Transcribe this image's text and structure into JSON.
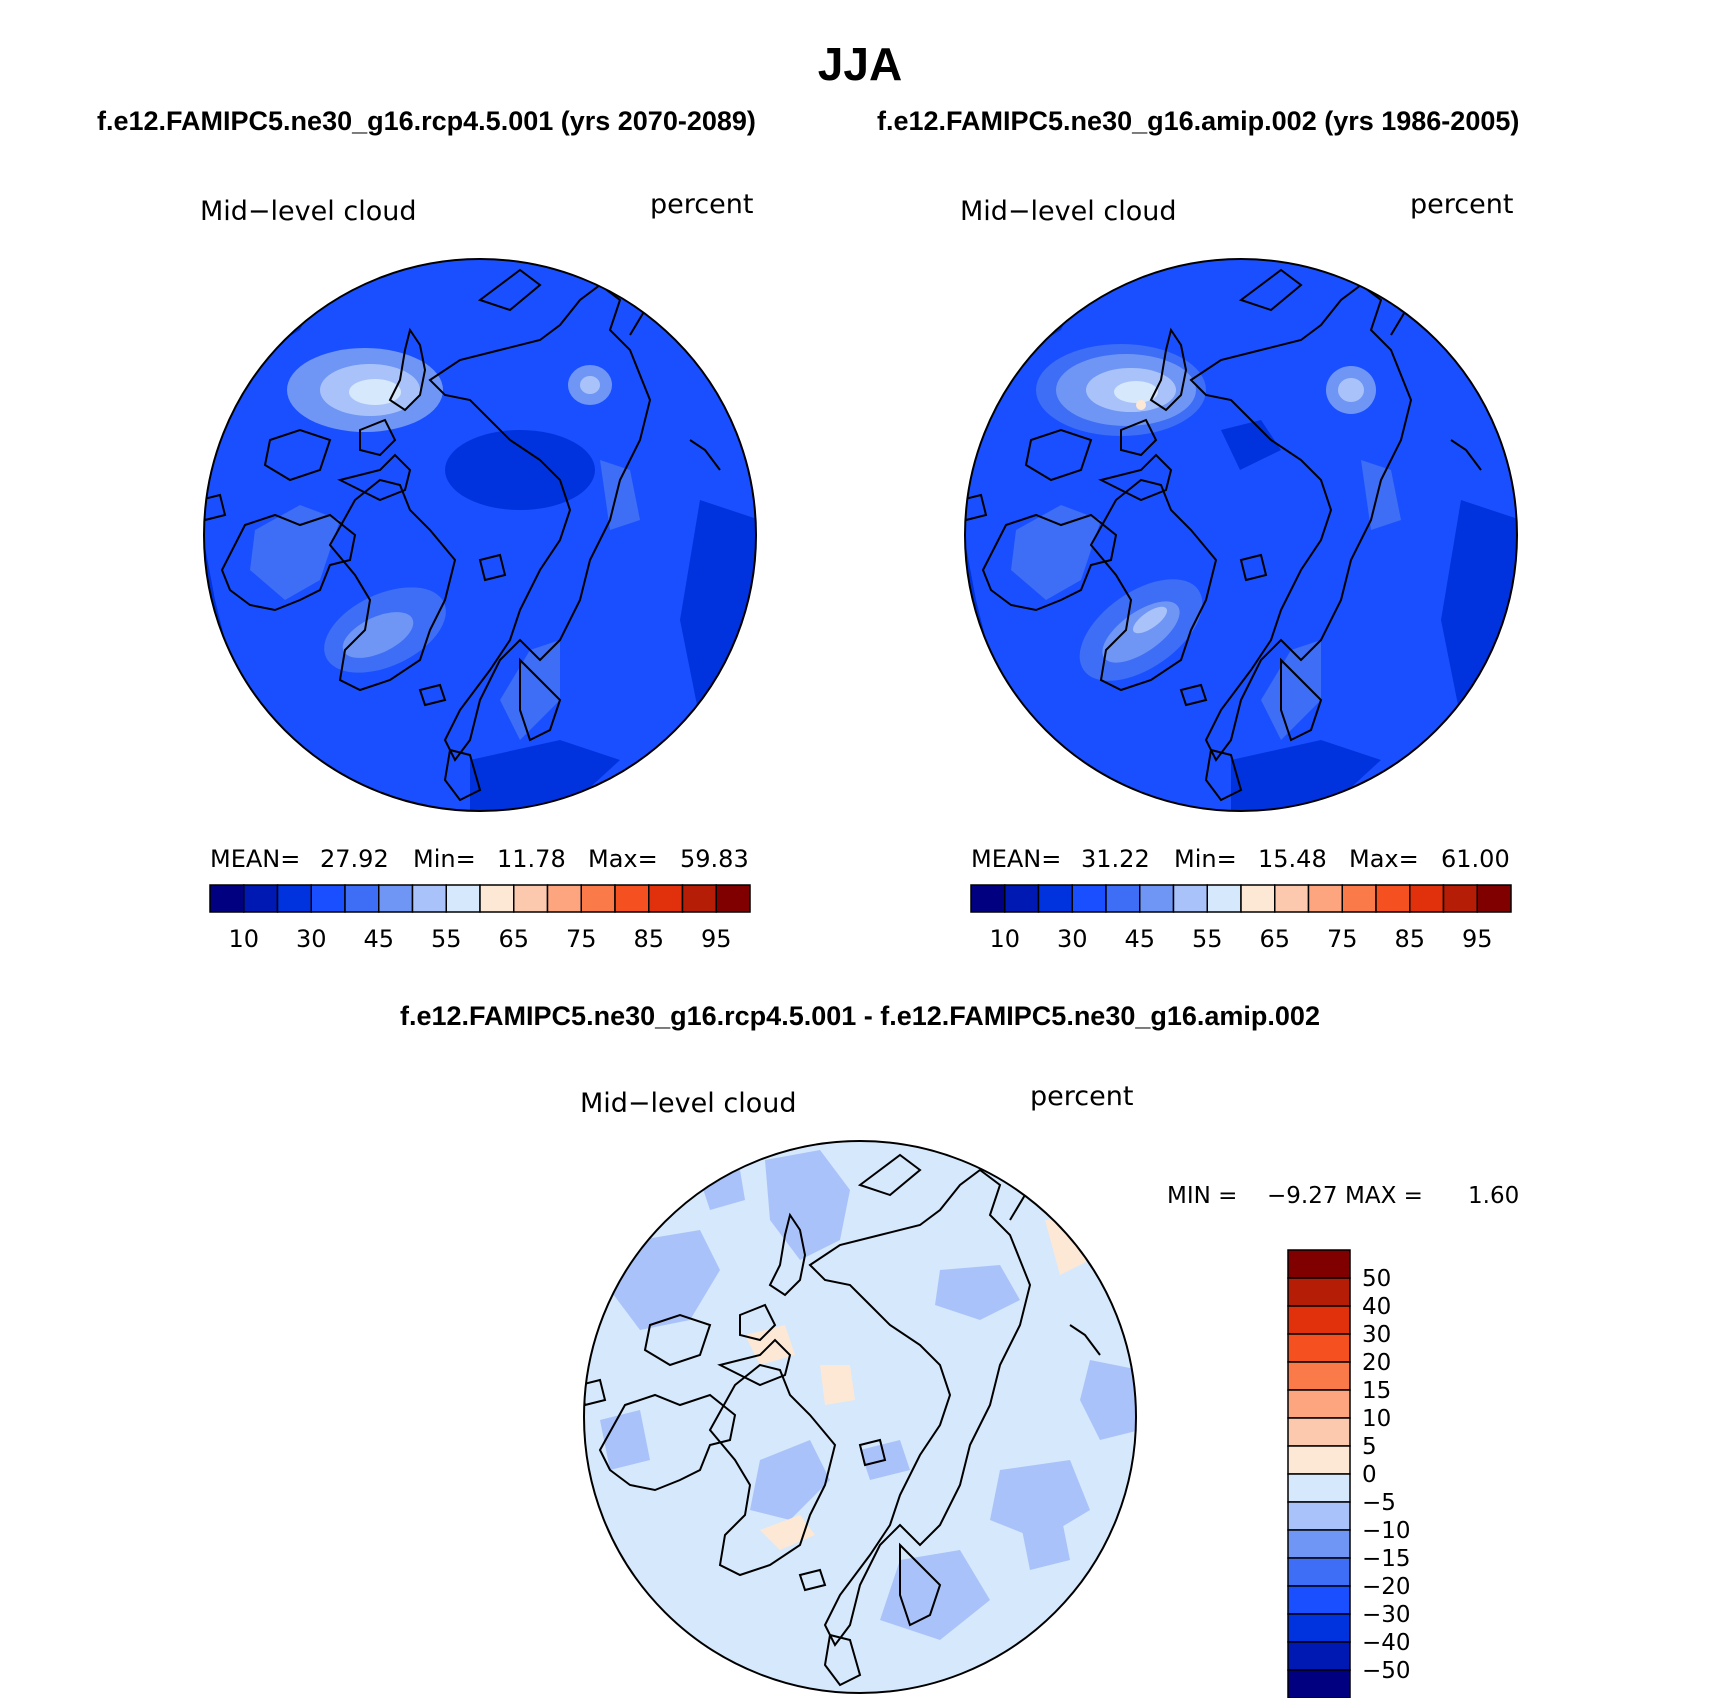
{
  "title": "JJA",
  "panels": [
    {
      "heading": "f.e12.FAMIPC5.ne30_g16.rcp4.5.001 (yrs 2070-2089)",
      "variable_label": "Mid−level cloud",
      "units_label": "percent",
      "stats": {
        "mean_label": "MEAN=",
        "mean_value": "27.92",
        "min_label": "Min=",
        "min_value": "11.78",
        "max_label": "Max=",
        "max_value": "59.83"
      }
    },
    {
      "heading": "f.e12.FAMIPC5.ne30_g16.amip.002 (yrs 1986-2005)",
      "variable_label": "Mid−level cloud",
      "units_label": "percent",
      "stats": {
        "mean_label": "MEAN=",
        "mean_value": "31.22",
        "min_label": "Min=",
        "min_value": "15.48",
        "max_label": "Max=",
        "max_value": "61.00"
      }
    }
  ],
  "colorbar_top": {
    "colors": [
      "#000080",
      "#0019b3",
      "#0033dd",
      "#1a4fff",
      "#3d6ef5",
      "#6f96f5",
      "#a9c3fa",
      "#d6e8fb",
      "#fde8d6",
      "#fcc9ae",
      "#fca57e",
      "#fb7a4a",
      "#f5501f",
      "#e0300c",
      "#b51d06",
      "#800000"
    ],
    "tick_labels": [
      "10",
      "30",
      "45",
      "55",
      "65",
      "75",
      "85",
      "95"
    ]
  },
  "diff_panel": {
    "heading": "f.e12.FAMIPC5.ne30_g16.rcp4.5.001 - f.e12.FAMIPC5.ne30_g16.amip.002",
    "variable_label": "Mid−level cloud",
    "units_label": "percent",
    "min_label": "MIN =",
    "min_value": "−9.27",
    "max_label": "MAX =",
    "max_value": "1.60"
  },
  "colorbar_diff": {
    "colors": [
      "#800000",
      "#b51d06",
      "#e0300c",
      "#f5501f",
      "#fb7a4a",
      "#fca57e",
      "#fcc9ae",
      "#fde8d6",
      "#d6e8fb",
      "#a9c3fa",
      "#6f96f5",
      "#3d6ef5",
      "#1a4fff",
      "#0033dd",
      "#0019b3",
      "#000080"
    ],
    "tick_labels": [
      "50",
      "40",
      "30",
      "20",
      "15",
      "10",
      "5",
      "0",
      "−5",
      "−10",
      "−15",
      "−20",
      "−30",
      "−40",
      "−50"
    ]
  }
}
